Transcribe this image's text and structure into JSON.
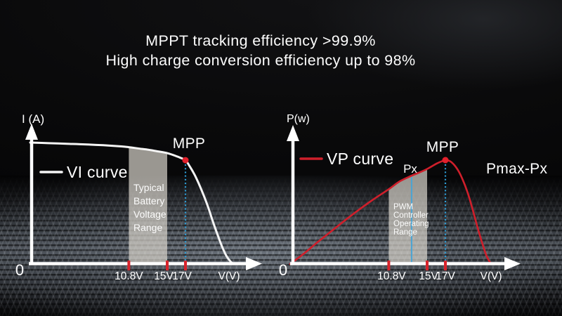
{
  "title": {
    "line1": "MPPT tracking efficiency >99.9%",
    "line2": "High charge conversion efficiency up to 98%"
  },
  "colors": {
    "background": "#000000",
    "axis": "#ffffff",
    "text": "#ffffff",
    "vi_curve": "#f5f5f5",
    "vp_curve": "#cf1f2b",
    "mpp_marker": "#e2202c",
    "tick": "#d8232b",
    "guide_blue": "#2d9fd8",
    "px_line_blue": "#4aa4d4",
    "band_fill": "rgba(216,212,204,0.7)"
  },
  "chart_data": [
    {
      "id": "vi",
      "type": "line",
      "ylabel": "I (A)",
      "xlabel": "V(V)",
      "origin_label": "0",
      "legend": {
        "label": "VI curve",
        "color": "#f5f5f5"
      },
      "x_unit": "V",
      "xlim": [
        0,
        23
      ],
      "grid": false,
      "x_ticks": [
        {
          "label": "10.8V",
          "v": 10.8,
          "dx": 0
        },
        {
          "label": "15V",
          "v": 15,
          "dx": -5
        },
        {
          "label": "17V",
          "v": 17,
          "dx": -5
        }
      ],
      "series": [
        {
          "name": "VI curve",
          "color": "#f5f5f5",
          "x": [
            0,
            2,
            4,
            6,
            8,
            10,
            10.8,
            12,
            13,
            14,
            15,
            16,
            16.5,
            17,
            17.5,
            18,
            18.5,
            19,
            19.5,
            20,
            20.5,
            21,
            21.5,
            22,
            22.3
          ],
          "y_norm": [
            1.0,
            0.995,
            0.99,
            0.985,
            0.978,
            0.968,
            0.962,
            0.95,
            0.94,
            0.927,
            0.913,
            0.888,
            0.873,
            0.855,
            0.8,
            0.735,
            0.655,
            0.565,
            0.465,
            0.35,
            0.245,
            0.145,
            0.065,
            0.015,
            0.0
          ]
        }
      ],
      "annotations": {
        "mpp": {
          "label": "MPP",
          "v": 17,
          "y_norm": 0.855
        },
        "band": {
          "lines": [
            "Typical",
            "Battery",
            "Voltage",
            "Range"
          ],
          "x_from": 10.8,
          "x_to": 15
        }
      }
    },
    {
      "id": "vp",
      "type": "line",
      "ylabel": "P(w)",
      "xlabel": "V(V)",
      "origin_label": "0",
      "legend": {
        "label": "VP curve",
        "color": "#cf1f2b"
      },
      "x_unit": "V",
      "xlim": [
        0,
        23
      ],
      "grid": false,
      "x_ticks": [
        {
          "label": "10.8V",
          "v": 10.8,
          "dx": 4
        },
        {
          "label": "15V",
          "v": 15,
          "dx": 2
        },
        {
          "label": "17V",
          "v": 17,
          "dx": 0
        }
      ],
      "series": [
        {
          "name": "VP curve",
          "color": "#cf1f2b",
          "x": [
            0,
            1.5,
            3,
            4.5,
            6,
            7.5,
            9,
            10.8,
            12,
            13.3,
            14,
            15,
            16,
            16.5,
            17,
            17.5,
            18,
            18.5,
            19,
            19.5,
            20,
            20.5,
            21,
            21.5,
            22
          ],
          "y_norm": [
            0,
            0.1,
            0.21,
            0.315,
            0.42,
            0.52,
            0.615,
            0.72,
            0.795,
            0.85,
            0.875,
            0.915,
            0.965,
            0.985,
            1.0,
            0.99,
            0.95,
            0.885,
            0.79,
            0.67,
            0.52,
            0.36,
            0.21,
            0.08,
            0
          ]
        }
      ],
      "annotations": {
        "mpp": {
          "label": "MPP",
          "v": 17,
          "y_norm": 1.0
        },
        "px": {
          "label": "Px",
          "v": 13.3,
          "y_norm": 0.85,
          "style": "solid"
        },
        "pmax": {
          "label": "Pmax-Px"
        },
        "band": {
          "lines": [
            "PWM",
            "Controller",
            "Operating",
            "Range"
          ],
          "x_from": 10.8,
          "x_to": 15
        }
      }
    }
  ]
}
